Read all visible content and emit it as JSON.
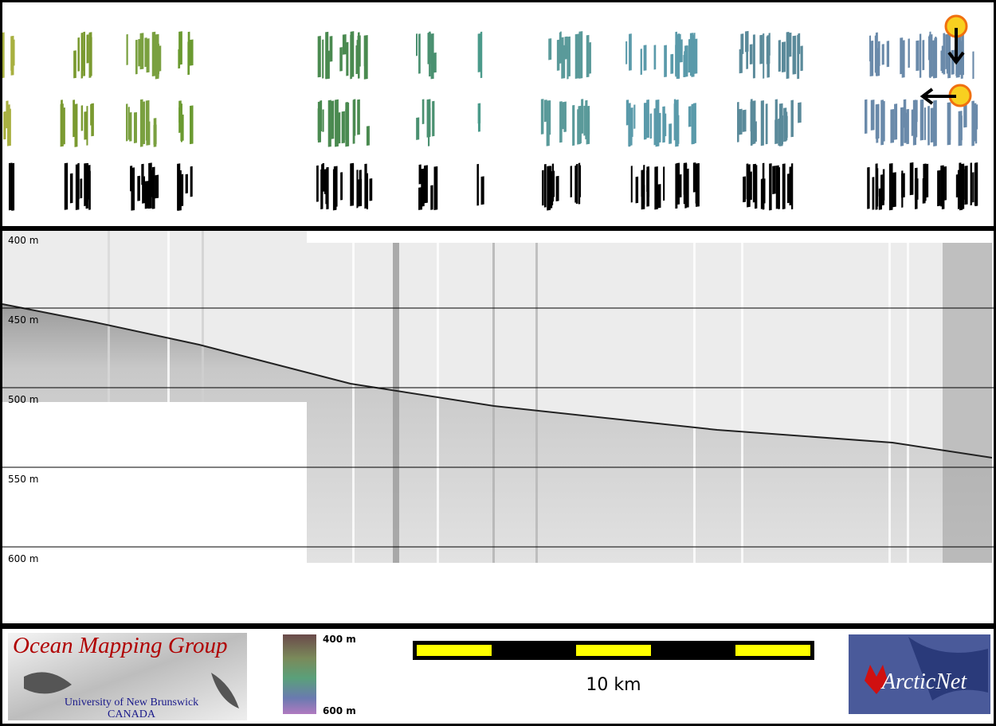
{
  "profile": {
    "depth_labels": [
      "400 m",
      "450 m",
      "500 m",
      "550 m",
      "600 m"
    ]
  },
  "footer": {
    "logo": {
      "title": "Ocean Mapping Group",
      "university": "University of New Brunswick",
      "country": "CANADA"
    },
    "colorbar": {
      "top_label": "400 m",
      "bottom_label": "600 m"
    },
    "scale_bar": {
      "label": "10 km"
    },
    "partner_logo": {
      "name": "ArcticNet"
    }
  }
}
